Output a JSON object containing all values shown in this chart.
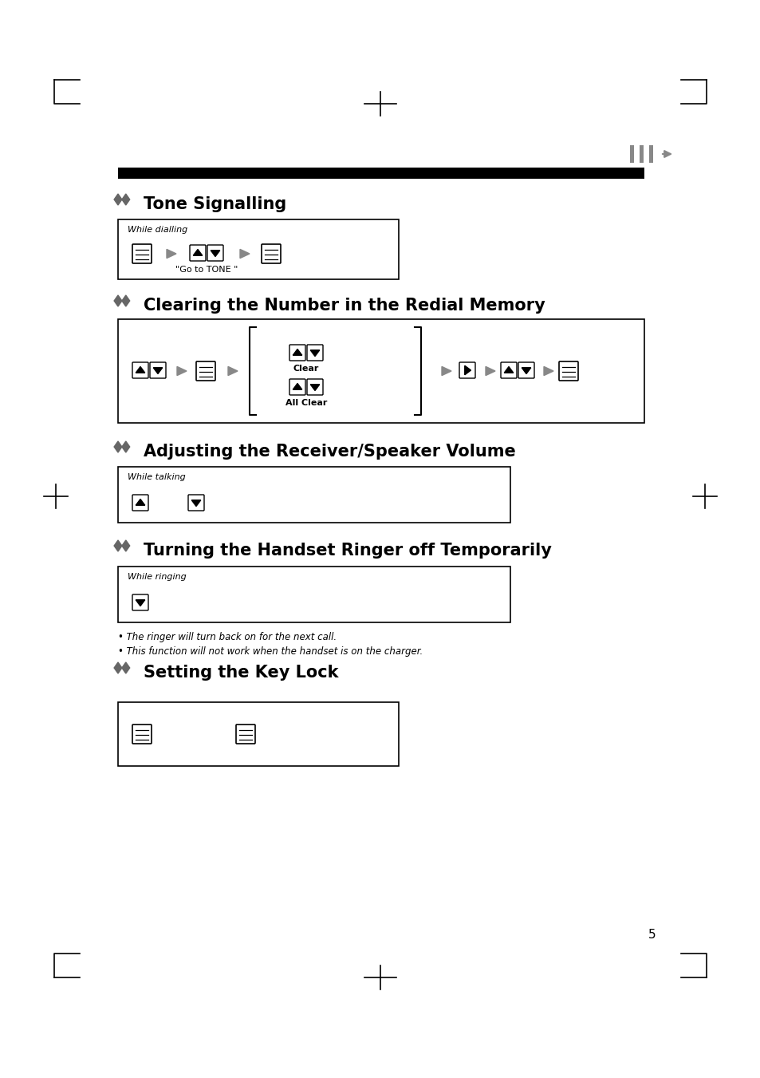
{
  "bg_color": "#ffffff",
  "page_number": "5",
  "sections": [
    {
      "title": "Tone Signalling"
    },
    {
      "title": "Clearing the Number in the Redial Memory"
    },
    {
      "title": "Adjusting the Receiver/Speaker Volume"
    },
    {
      "title": "Turning the Handset Ringer off Temporarily"
    },
    {
      "title": "Setting the Key Lock"
    }
  ],
  "notes": [
    "• The ringer will turn back on for the next call.",
    "• This function will not work when the handset is on the charger."
  ],
  "header_bar_color": "#000000",
  "diamond_color": "#666666",
  "arrow_color": "#888888",
  "corner_mark_color": "#000000"
}
